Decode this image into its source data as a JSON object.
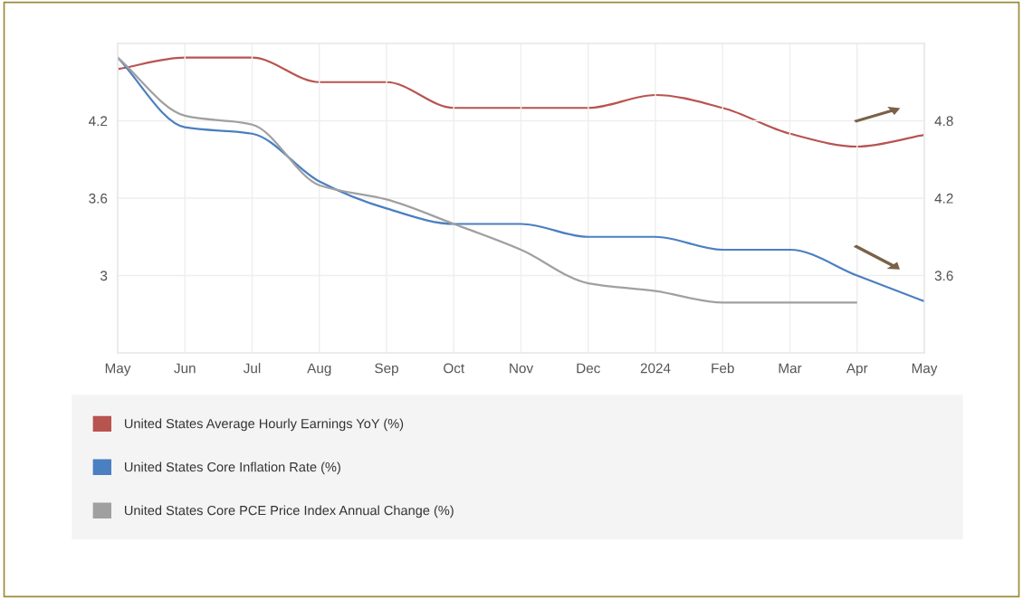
{
  "chart_data": {
    "type": "line",
    "categories": [
      "May",
      "Jun",
      "Jul",
      "Aug",
      "Sep",
      "Oct",
      "Nov",
      "Dec",
      "2024",
      "Feb",
      "Mar",
      "Apr",
      "May"
    ],
    "series": [
      {
        "name": "United States Average Hourly Earnings YoY (%)",
        "color": "#b85450",
        "axis": "y2",
        "values": [
          5.2,
          5.29,
          5.29,
          5.1,
          5.1,
          4.9,
          4.9,
          4.9,
          5.0,
          4.9,
          4.7,
          4.6,
          4.69
        ]
      },
      {
        "name": "United States Core Inflation Rate (%)",
        "color": "#4a7fc1",
        "values": [
          4.69,
          4.15,
          4.1,
          3.73,
          3.52,
          3.4,
          3.4,
          3.3,
          3.3,
          3.2,
          3.2,
          3.0,
          2.8
        ]
      },
      {
        "name": "United States Core PCE Price Index Annual Change (%)",
        "color": "#a0a0a0",
        "values": [
          4.69,
          4.24,
          4.17,
          3.7,
          3.59,
          3.4,
          3.2,
          2.94,
          2.88,
          2.79,
          2.79,
          2.79,
          null
        ]
      }
    ],
    "ylim": [
      2.4,
      4.8
    ],
    "yticks": [
      3,
      3.6,
      4.2
    ],
    "y2lim": [
      3.0,
      5.4
    ],
    "y2ticks": [
      3.6,
      4.2,
      4.8
    ],
    "grid": true,
    "legend": "bottom"
  }
}
